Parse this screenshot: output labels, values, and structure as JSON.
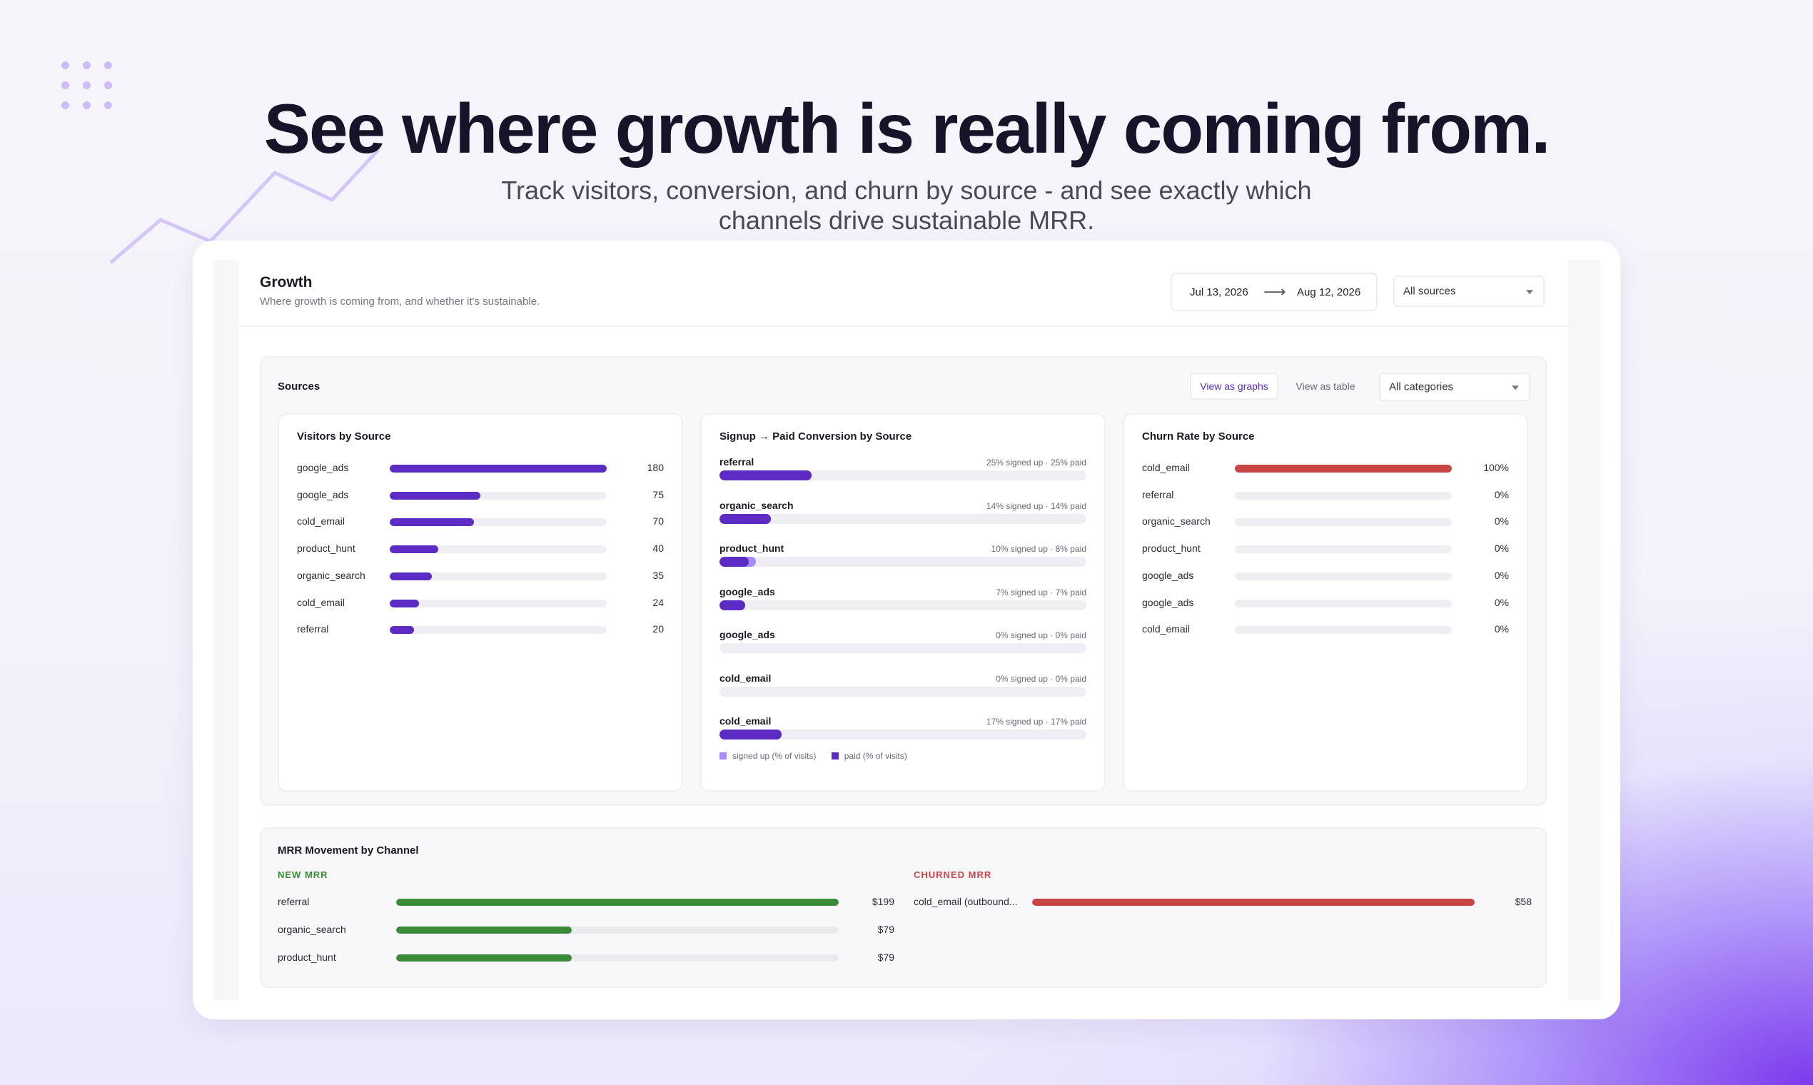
{
  "hero": {
    "title": "See where growth is really coming from.",
    "subtitle_line1": "Track visitors, conversion, and churn by source - and see exactly which",
    "subtitle_line2": "channels drive sustainable MRR."
  },
  "colors": {
    "purple": "#5b2bc4",
    "purple_light": "#a78bfa",
    "green": "#3a8a37",
    "red": "#c94444",
    "track": "#efeff3"
  },
  "header": {
    "title": "Growth",
    "subtitle": "Where growth is coming from, and whether it's sustainable.",
    "date_from": "Jul 13, 2026",
    "date_to": "Aug 12, 2026",
    "arrow_icon": "arrow-right-icon",
    "source_filter": "All sources"
  },
  "sources": {
    "title": "Sources",
    "view_graphs": "View as graphs",
    "view_table": "View as table",
    "category_filter": "All categories"
  },
  "visitors": {
    "title": "Visitors by Source",
    "max": 180,
    "rows": [
      {
        "name": "google_ads",
        "value": 180,
        "label": "180"
      },
      {
        "name": "google_ads",
        "value": 75,
        "label": "75"
      },
      {
        "name": "cold_email",
        "value": 70,
        "label": "70"
      },
      {
        "name": "product_hunt",
        "value": 40,
        "label": "40"
      },
      {
        "name": "organic_search",
        "value": 35,
        "label": "35"
      },
      {
        "name": "cold_email",
        "value": 24,
        "label": "24"
      },
      {
        "name": "referral",
        "value": 20,
        "label": "20"
      }
    ]
  },
  "conversion": {
    "title": "Signup → Paid Conversion by Source",
    "rows": [
      {
        "name": "referral",
        "signed": 25,
        "paid": 25,
        "meta": "25% signed up · 25% paid"
      },
      {
        "name": "organic_search",
        "signed": 14,
        "paid": 14,
        "meta": "14% signed up · 14% paid"
      },
      {
        "name": "product_hunt",
        "signed": 10,
        "paid": 8,
        "meta": "10% signed up · 8% paid"
      },
      {
        "name": "google_ads",
        "signed": 7,
        "paid": 7,
        "meta": "7% signed up · 7% paid"
      },
      {
        "name": "google_ads",
        "signed": 0,
        "paid": 0,
        "meta": "0% signed up · 0% paid"
      },
      {
        "name": "cold_email",
        "signed": 0,
        "paid": 0,
        "meta": "0% signed up · 0% paid"
      },
      {
        "name": "cold_email",
        "signed": 17,
        "paid": 17,
        "meta": "17% signed up · 17% paid"
      }
    ],
    "legend_signed": "signed up (% of visits)",
    "legend_paid": "paid (% of visits)"
  },
  "churn": {
    "title": "Churn Rate by Source",
    "rows": [
      {
        "name": "cold_email",
        "value": 100,
        "label": "100%"
      },
      {
        "name": "referral",
        "value": 0,
        "label": "0%"
      },
      {
        "name": "organic_search",
        "value": 0,
        "label": "0%"
      },
      {
        "name": "product_hunt",
        "value": 0,
        "label": "0%"
      },
      {
        "name": "google_ads",
        "value": 0,
        "label": "0%"
      },
      {
        "name": "google_ads",
        "value": 0,
        "label": "0%"
      },
      {
        "name": "cold_email",
        "value": 0,
        "label": "0%"
      }
    ]
  },
  "mrr": {
    "title": "MRR Movement by Channel",
    "new_label": "NEW MRR",
    "churned_label": "CHURNED MRR",
    "new_max": 199,
    "new_rows": [
      {
        "name": "referral",
        "value": 199,
        "label": "$199"
      },
      {
        "name": "organic_search",
        "value": 79,
        "label": "$79"
      },
      {
        "name": "product_hunt",
        "value": 79,
        "label": "$79"
      }
    ],
    "churned_max": 58,
    "churned_rows": [
      {
        "name": "cold_email (outbound...",
        "value": 58,
        "label": "$58"
      }
    ]
  }
}
